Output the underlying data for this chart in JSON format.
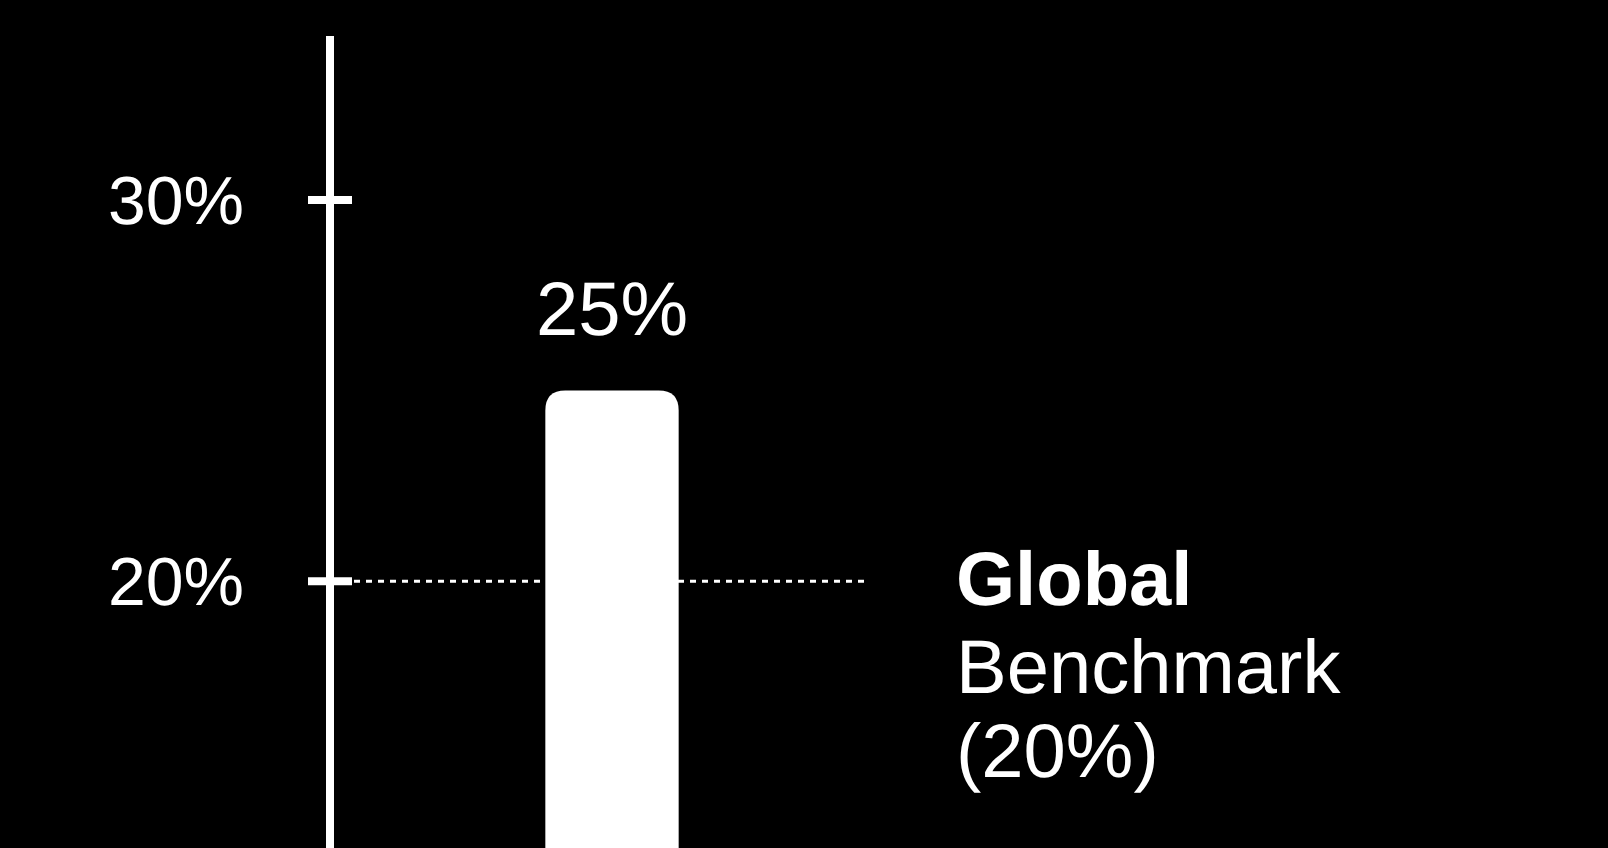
{
  "chart_data": {
    "type": "bar",
    "categories": [
      null
    ],
    "values": [
      25
    ],
    "color": "#ffffff",
    "value_labels": [
      "25%"
    ],
    "ylim": [
      13,
      34.3
    ],
    "yticks": [
      {
        "value": 20,
        "label": "20%"
      },
      {
        "value": 30,
        "label": "30%"
      }
    ],
    "grid": false,
    "ref_lines": [
      {
        "axis": "y",
        "value": 20,
        "label": "Global Benchmark (20%)",
        "color": "#ffffff",
        "line_style": "dotted"
      }
    ]
  }
}
